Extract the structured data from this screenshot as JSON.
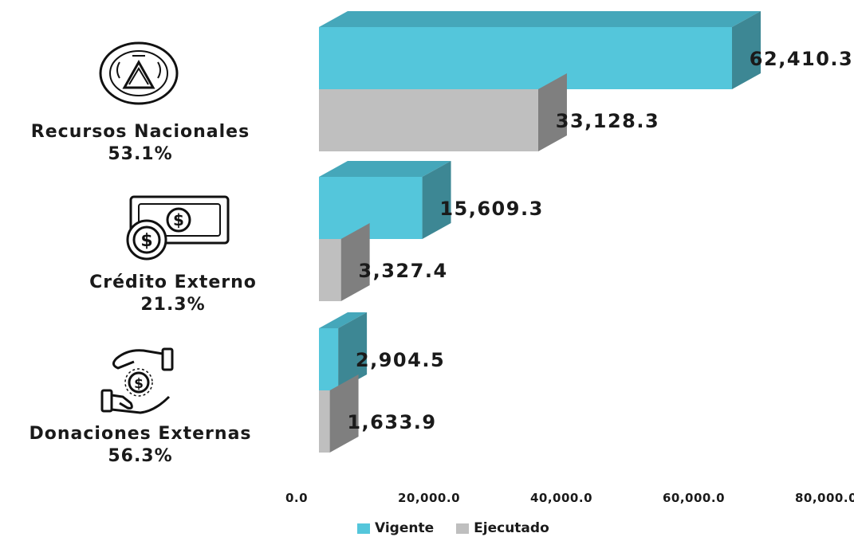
{
  "categories": [
    {
      "name": "Recursos Nacionales",
      "pct": "53.1%",
      "icon": "national-seal-icon"
    },
    {
      "name": "Crédito Externo",
      "pct": "21.3%",
      "icon": "money-bill-coins-icon"
    },
    {
      "name": "Donaciones Externas",
      "pct": "56.3%",
      "icon": "hands-coin-icon"
    }
  ],
  "legend": {
    "vigente": "Vigente",
    "ejecutado": "Ejecutado"
  },
  "colors": {
    "vigente": "#54C6DB",
    "vigente_side": "#3D8794",
    "vigente_top": "#45A7BA",
    "ejecutado": "#BFBFBF",
    "ejecutado_side": "#7F7F7F",
    "ejecutado_top": "#A6A6A6"
  },
  "chart_data": {
    "type": "bar",
    "orientation": "horizontal",
    "style": "3d",
    "categories": [
      "Recursos Nacionales",
      "Crédito Externo",
      "Donaciones Externas"
    ],
    "series": [
      {
        "name": "Vigente",
        "values": [
          62410.3,
          15609.3,
          2904.5
        ],
        "labels": [
          "62,410.3",
          "15,609.3",
          "2,904.5"
        ]
      },
      {
        "name": "Ejecutado",
        "values": [
          33128.3,
          3327.4,
          1633.9
        ],
        "labels": [
          "33,128.3",
          "3,327.4",
          "1,633.9"
        ]
      }
    ],
    "xlim": [
      0,
      80000
    ],
    "xticks": [
      "0.0",
      "20,000.0",
      "40,000.0",
      "60,000.0",
      "80,000.0"
    ],
    "legend_position": "bottom",
    "grid": false
  }
}
